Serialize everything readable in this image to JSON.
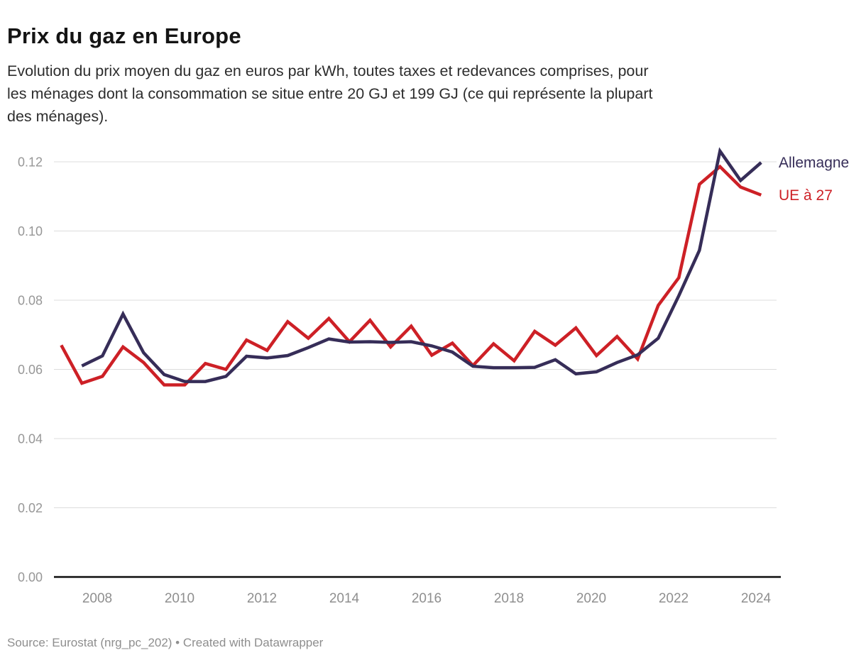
{
  "header": {
    "title": "Prix du gaz en Europe",
    "subtitle_lines": [
      "Evolution du prix moyen du gaz en euros par kWh, toutes taxes et redevances comprises, pour",
      "les ménages dont la consommation se situe entre 20 GJ et 199 GJ (ce qui représente la plupart",
      "des ménages)."
    ]
  },
  "footer": {
    "text": "Source: Eurostat (nrg_pc_202) • Created with Datawrapper"
  },
  "chart_data": {
    "type": "line",
    "x_unit": "half-year (Eurostat semesters)",
    "x": [
      "2007-S1",
      "2007-S2",
      "2008-S1",
      "2008-S2",
      "2009-S1",
      "2009-S2",
      "2010-S1",
      "2010-S2",
      "2011-S1",
      "2011-S2",
      "2012-S1",
      "2012-S2",
      "2013-S1",
      "2013-S2",
      "2014-S1",
      "2014-S2",
      "2015-S1",
      "2015-S2",
      "2016-S1",
      "2016-S2",
      "2017-S1",
      "2017-S2",
      "2018-S1",
      "2018-S2",
      "2019-S1",
      "2019-S2",
      "2020-S1",
      "2020-S2",
      "2021-S1",
      "2021-S2",
      "2022-S1",
      "2022-S2",
      "2023-S1",
      "2023-S2",
      "2024-S1"
    ],
    "series": [
      {
        "name": "UE à 27",
        "color": "#cd2026",
        "values": [
          0.067,
          0.056,
          0.058,
          0.0665,
          0.062,
          0.0555,
          0.0555,
          0.0617,
          0.06,
          0.0685,
          0.0655,
          0.0738,
          0.069,
          0.0747,
          0.068,
          0.0742,
          0.0665,
          0.0725,
          0.0641,
          0.0676,
          0.0611,
          0.0674,
          0.0625,
          0.071,
          0.067,
          0.072,
          0.064,
          0.0695,
          0.063,
          0.0785,
          0.0865,
          0.1135,
          0.1186,
          0.1127,
          0.1104
        ]
      },
      {
        "name": "Allemagne",
        "color": "#362d58",
        "values": [
          null,
          0.061,
          0.0639,
          0.076,
          0.0648,
          0.0585,
          0.0565,
          0.0565,
          0.058,
          0.0638,
          0.0633,
          0.064,
          0.0663,
          0.0688,
          0.0679,
          0.068,
          0.0678,
          0.068,
          0.0668,
          0.065,
          0.0609,
          0.0605,
          0.0605,
          0.0606,
          0.0628,
          0.0587,
          0.0593,
          0.062,
          0.0642,
          0.069,
          0.0813,
          0.0944,
          0.1231,
          0.1146,
          0.1198
        ]
      }
    ],
    "title": "Prix du gaz en Europe",
    "xlabel": "",
    "ylabel": "",
    "ylim": [
      0,
      0.128
    ],
    "yticks": [
      0.0,
      0.02,
      0.04,
      0.06,
      0.08,
      0.1,
      0.12
    ],
    "ytick_labels": [
      "0.00",
      "0.02",
      "0.04",
      "0.06",
      "0.08",
      "0.10",
      "0.12"
    ],
    "xticks": [
      2008,
      2010,
      2012,
      2014,
      2016,
      2018,
      2020,
      2022,
      2024
    ],
    "grid": true,
    "legend_position": "right-of-line-end"
  }
}
